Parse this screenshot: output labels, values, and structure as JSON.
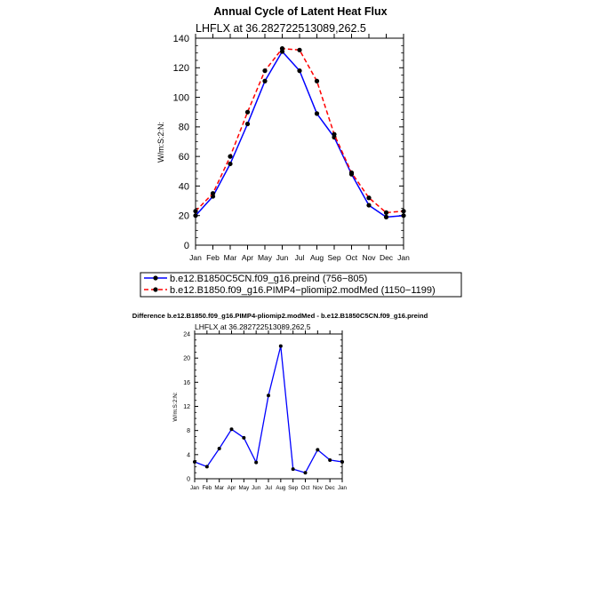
{
  "colors": {
    "preind": "#0000ff",
    "pliomip": "#ff0000",
    "difference": "#0000ff",
    "marker": "#000000",
    "axis": "#000000"
  },
  "chart_data": [
    {
      "type": "line",
      "title": "Annual Cycle of Latent Heat Flux",
      "subtitle": "LHFLX  at  36.282722513089,262.5",
      "xlabel": "",
      "ylabel": "W/m:S:2:N:",
      "categories": [
        "Jan",
        "Feb",
        "Mar",
        "Apr",
        "May",
        "Jun",
        "Jul",
        "Aug",
        "Sep",
        "Oct",
        "Nov",
        "Dec",
        "Jan"
      ],
      "ylim": [
        0,
        140
      ],
      "yticks": [
        "0",
        "20",
        "40",
        "60",
        "80",
        "100",
        "120",
        "140"
      ],
      "grid": false,
      "series": [
        {
          "name": "b.e12.B1850C5CN.f09_g16.preind (756-805)",
          "style": "solid",
          "values": [
            20,
            33,
            55,
            82,
            111,
            131,
            118,
            89,
            73,
            48,
            27,
            19,
            20
          ]
        },
        {
          "name": "b.e12.B1850.f09_g16.PIMP4-pliomip2.modMed (1150-1199)",
          "style": "dashed",
          "values": [
            23,
            35,
            60,
            90,
            118,
            133,
            132,
            111,
            75,
            49,
            32,
            22,
            23
          ]
        }
      ],
      "legend": {
        "position": "below",
        "labels": [
          "b.e12.B1850C5CN.f09_g16.preind (756−805)",
          "b.e12.B1850.f09_g16.PIMP4−pliomip2.modMed (1150−1199)"
        ]
      }
    },
    {
      "type": "line",
      "title": "Difference b.e12.B1850.f09_g16.PIMP4-pliomip2.modMed - b.e12.B1850C5CN.f09_g16.preind",
      "subtitle": "LHFLX  at  36.282722513089,262.5",
      "xlabel": "",
      "ylabel": "W/m:S:2:N:",
      "categories": [
        "Jan",
        "Feb",
        "Mar",
        "Apr",
        "May",
        "Jun",
        "Jul",
        "Aug",
        "Sep",
        "Oct",
        "Nov",
        "Dec",
        "Jan"
      ],
      "ylim": [
        0,
        24
      ],
      "yticks": [
        "0",
        "4",
        "8",
        "12",
        "16",
        "20",
        "24"
      ],
      "grid": false,
      "series": [
        {
          "name": "difference",
          "style": "solid",
          "values": [
            2.8,
            2,
            5,
            8.2,
            6.8,
            2.7,
            13.8,
            22,
            1.6,
            1,
            4.8,
            3.1,
            2.8
          ]
        }
      ]
    }
  ]
}
